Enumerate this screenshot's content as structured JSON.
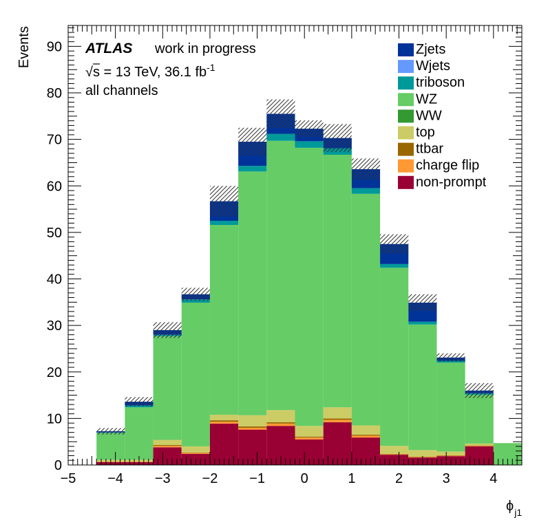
{
  "chart_data": {
    "type": "bar",
    "stacked": true,
    "xlabel_main": "ϕ",
    "xlabel_sub": "j1",
    "ylabel": "Events",
    "xlim": [
      -5,
      4.6
    ],
    "ylim": [
      0,
      94.5
    ],
    "x_ticks": [
      -5,
      -4,
      -3,
      -2,
      -1,
      0,
      1,
      2,
      3,
      4
    ],
    "y_ticks": [
      0,
      10,
      20,
      30,
      40,
      50,
      60,
      70,
      80,
      90
    ],
    "bin_edges": [
      -4.4,
      -3.8,
      -3.2,
      -2.6,
      -2.0,
      -1.4,
      -0.8,
      -0.2,
      0.4,
      1.0,
      1.6,
      2.2,
      2.8,
      3.4,
      4.0,
      4.6
    ],
    "atlas": {
      "label": "ATLAS",
      "status": "work in progress"
    },
    "energy_text": {
      "sqrt": "√",
      "s_var": "s",
      "rest": " = 13 TeV, 36.1 fb",
      "sup": "-1"
    },
    "channel_text": "all channels",
    "legend_position": "top-right",
    "uncertainty_band": {
      "hatched": true
    },
    "series": [
      {
        "name": "non-prompt",
        "color": "#990033",
        "values": [
          0.6,
          0.6,
          3.8,
          2.4,
          8.9,
          7.6,
          8.4,
          5.5,
          9.2,
          5.9,
          2.2,
          1.6,
          1.9,
          4.0,
          0.0
        ]
      },
      {
        "name": "charge flip",
        "color": "#ff9933",
        "values": [
          0.1,
          0.1,
          0.3,
          0.2,
          0.4,
          0.4,
          0.5,
          0.4,
          0.5,
          0.4,
          0.1,
          0.1,
          0.1,
          0.1,
          0.0
        ]
      },
      {
        "name": "ttbar",
        "color": "#996600",
        "values": [
          0.05,
          0.05,
          0.2,
          0.1,
          0.3,
          0.3,
          0.3,
          0.2,
          0.3,
          0.2,
          0.1,
          0.1,
          0.1,
          0.1,
          0.0
        ]
      },
      {
        "name": "top",
        "color": "#cccc66",
        "values": [
          0.35,
          0.35,
          1.1,
          1.3,
          1.2,
          2.4,
          2.6,
          2.3,
          2.4,
          2.0,
          1.7,
          1.4,
          0.8,
          0.4,
          0.0
        ]
      },
      {
        "name": "WW",
        "color": "#339933",
        "values": [
          0.0,
          0.0,
          0.0,
          0.0,
          0.0,
          0.0,
          0.0,
          0.0,
          0.0,
          0.0,
          0.0,
          0.0,
          0.0,
          0.0,
          0.0
        ]
      },
      {
        "name": "WZ",
        "color": "#66cc66",
        "values": [
          5.8,
          11.3,
          22.3,
          30.9,
          40.8,
          52.4,
          57.9,
          59.8,
          54.3,
          49.8,
          38.3,
          27.0,
          19.1,
          10.5,
          4.7
        ]
      },
      {
        "name": "triboson",
        "color": "#009999",
        "values": [
          0.1,
          0.4,
          0.3,
          0.7,
          0.9,
          1.2,
          1.5,
          1.4,
          1.4,
          1.2,
          0.8,
          0.6,
          0.4,
          0.3,
          0.0
        ]
      },
      {
        "name": "Wjets",
        "color": "#6699ff",
        "values": [
          0.0,
          0.0,
          0.0,
          0.0,
          0.0,
          0.0,
          0.0,
          0.0,
          0.0,
          0.0,
          0.0,
          0.0,
          0.0,
          0.0,
          0.0
        ]
      },
      {
        "name": "Zjets",
        "color": "#003399",
        "values": [
          0.25,
          0.8,
          1.0,
          1.1,
          4.2,
          5.2,
          4.3,
          2.7,
          2.2,
          4.1,
          4.3,
          4.1,
          0.7,
          0.6,
          0.0
        ]
      }
    ],
    "uncertainty": [
      0.7,
      1.0,
      1.7,
      1.4,
      3.3,
      3.0,
      3.1,
      1.8,
      3.0,
      2.3,
      2.1,
      1.8,
      0.9,
      1.6,
      0.0
    ]
  }
}
